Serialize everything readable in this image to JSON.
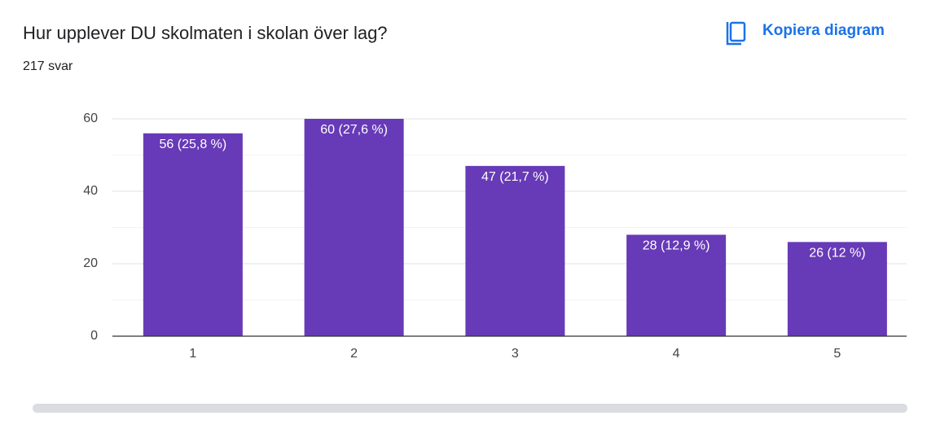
{
  "copy_button": "Kopiera diagram",
  "chart_data": {
    "type": "bar",
    "title": "Hur upplever DU skolmaten i skolan över lag?",
    "subtitle": "217 svar",
    "categories": [
      "1",
      "2",
      "3",
      "4",
      "5"
    ],
    "values": [
      56,
      60,
      47,
      28,
      26
    ],
    "value_labels": [
      "56 (25,8 %)",
      "60 (27,6 %)",
      "47 (21,7 %)",
      "28 (12,9 %)",
      "26 (12 %)"
    ],
    "color": "#673ab7",
    "ylim": [
      0,
      60
    ],
    "yticks": [
      0,
      20,
      40,
      60
    ],
    "minor_yticks": [
      10,
      30,
      50
    ],
    "grid": true
  }
}
